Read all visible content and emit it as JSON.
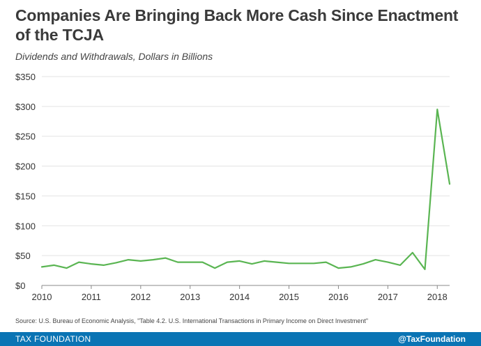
{
  "chart_data": {
    "type": "line",
    "title": "Companies Are Bringing Back More Cash Since Enactment of the TCJA",
    "subtitle": "Dividends and Withdrawals, Dollars in Billions",
    "xlabel": "",
    "ylabel": "",
    "ylim": [
      0,
      350
    ],
    "xlim": [
      2010,
      2018.25
    ],
    "y_ticks": [
      0,
      50,
      100,
      150,
      200,
      250,
      300,
      350
    ],
    "y_tick_labels": [
      "$0",
      "$50",
      "$100",
      "$150",
      "$200",
      "$250",
      "$300",
      "$350"
    ],
    "x_ticks": [
      2010,
      2011,
      2012,
      2013,
      2014,
      2015,
      2016,
      2017,
      2018
    ],
    "x_tick_labels": [
      "2010",
      "2011",
      "2012",
      "2013",
      "2014",
      "2015",
      "2016",
      "2017",
      "2018"
    ],
    "grid": true,
    "line_color": "#5ab552",
    "series": [
      {
        "name": "Dividends and Withdrawals",
        "x": [
          2010.0,
          2010.25,
          2010.5,
          2010.75,
          2011.0,
          2011.25,
          2011.5,
          2011.75,
          2012.0,
          2012.25,
          2012.5,
          2012.75,
          2013.0,
          2013.25,
          2013.5,
          2013.75,
          2014.0,
          2014.25,
          2014.5,
          2014.75,
          2015.0,
          2015.25,
          2015.5,
          2015.75,
          2016.0,
          2016.25,
          2016.5,
          2016.75,
          2017.0,
          2017.25,
          2017.5,
          2017.75,
          2018.0,
          2018.25
        ],
        "values": [
          31,
          34,
          29,
          39,
          36,
          34,
          38,
          43,
          41,
          43,
          46,
          39,
          39,
          39,
          29,
          39,
          41,
          36,
          41,
          39,
          37,
          37,
          37,
          39,
          29,
          31,
          36,
          43,
          39,
          34,
          55,
          27,
          295,
          170
        ]
      }
    ]
  },
  "source": "Source: U.S. Bureau of Economic Analysis, \"Table 4.2. U.S. International Transactions in Primary Income on Direct Investment\"",
  "footer": {
    "brand": "TAX FOUNDATION",
    "handle": "@TaxFoundation"
  }
}
